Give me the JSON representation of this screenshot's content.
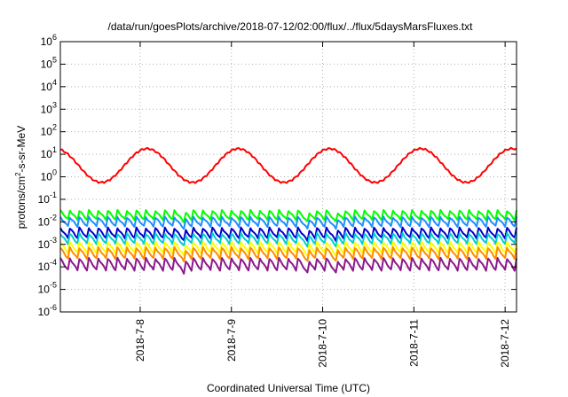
{
  "chart_data": {
    "type": "line",
    "title": "/data/run/goesPlots/archive/2018-07-12/02:00/flux/../flux/5daysMarsFluxes.txt",
    "xlabel": "Coordinated Universal Time (UTC)",
    "ylabel": {
      "prefix": "protons/cm",
      "superscript": "2",
      "suffix": "-s-sr-MeV"
    },
    "y_scale": "log",
    "ylim_exponents": [
      -6,
      6
    ],
    "y_tick_base": "10",
    "y_tick_exponents": [
      "-6",
      "-5",
      "-4",
      "-3",
      "-2",
      "-1",
      "0",
      "1",
      "2",
      "3",
      "4",
      "5",
      "6"
    ],
    "xlim": [
      "2018-07-07T03:00",
      "2018-07-12T03:00"
    ],
    "x_ticks": [
      {
        "t": "2018-07-08T00:00",
        "label": "2018-7-8"
      },
      {
        "t": "2018-07-09T00:00",
        "label": "2018-7-9"
      },
      {
        "t": "2018-07-10T00:00",
        "label": "2018-7-10"
      },
      {
        "t": "2018-07-11T00:00",
        "label": "2018-7-11"
      },
      {
        "t": "2018-07-12T00:00",
        "label": "2018-7-12"
      }
    ],
    "grid": true,
    "series": [
      {
        "color": "#ff0000",
        "width": 2,
        "base": 0.5,
        "amp": 0.75,
        "jitter": 0.04,
        "spans": 24,
        "annual": true
      },
      {
        "color": "#00ff00",
        "width": 2,
        "base": -1.75,
        "amp": 0.5,
        "jitter": 0.03,
        "spans": 48
      },
      {
        "color": "#1e90ff",
        "width": 2,
        "base": -2.05,
        "amp": 0.5,
        "jitter": 0.03,
        "spans": 48
      },
      {
        "color": "#0000cc",
        "width": 2,
        "base": -2.55,
        "amp": 0.55,
        "jitter": 0.03,
        "spans": 48
      },
      {
        "color": "#00ced1",
        "width": 2,
        "base": -2.8,
        "amp": 0.55,
        "jitter": 0.03,
        "spans": 48
      },
      {
        "color": "#ffff00",
        "width": 2,
        "base": -3.2,
        "amp": 0.6,
        "jitter": 0.03,
        "spans": 48
      },
      {
        "color": "#ff8c00",
        "width": 2,
        "base": -3.45,
        "amp": 0.6,
        "jitter": 0.03,
        "spans": 48
      },
      {
        "color": "#8b1a8b",
        "width": 2,
        "base": -3.95,
        "amp": 0.65,
        "jitter": 0.03,
        "spans": 48
      }
    ]
  }
}
